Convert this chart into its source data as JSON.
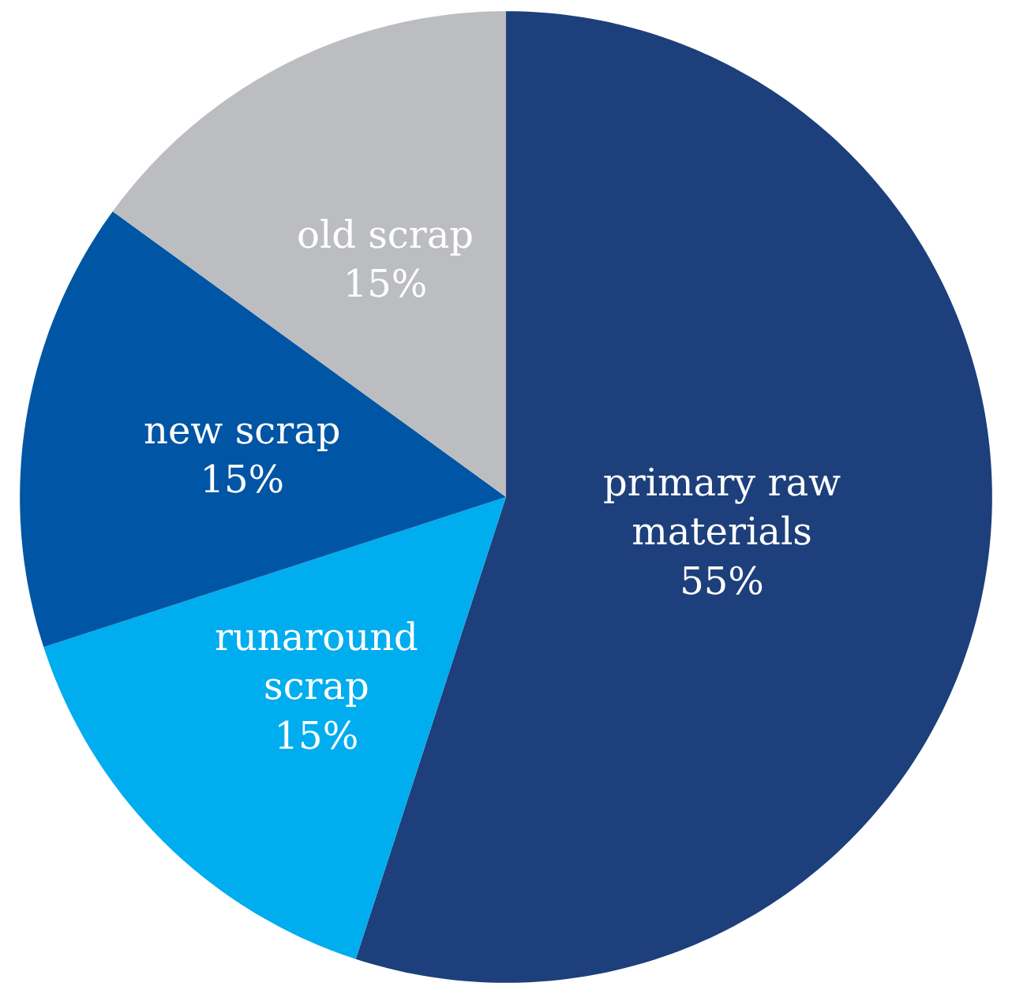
{
  "chart_data": {
    "type": "pie",
    "categories": [
      "primary raw materials",
      "runaround scrap",
      "new scrap",
      "old scrap"
    ],
    "values": [
      55,
      15,
      15,
      15
    ],
    "value_labels": [
      "55%",
      "15%",
      "15%",
      "15%"
    ],
    "colors": [
      "#1d3f7b",
      "#00adee",
      "#0055a4",
      "#bcbdc0"
    ],
    "legend": false
  }
}
